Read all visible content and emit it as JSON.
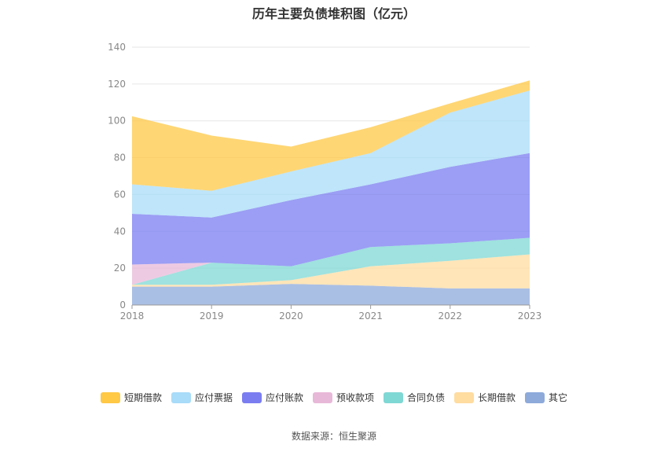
{
  "chart_data": {
    "type": "area",
    "stacked": true,
    "title": "历年主要负债堆积图（亿元）",
    "x": [
      "2018",
      "2019",
      "2020",
      "2021",
      "2022",
      "2023"
    ],
    "ylim": [
      0,
      140
    ],
    "yticks": [
      0,
      20,
      40,
      60,
      80,
      100,
      120,
      140
    ],
    "grid": true,
    "legend_position": "bottom",
    "series": [
      {
        "name": "其它",
        "color": "#8eaadb",
        "values": [
          10,
          10,
          11.5,
          10.5,
          9,
          9
        ]
      },
      {
        "name": "长期借款",
        "color": "#ffdca0",
        "values": [
          1,
          1,
          2,
          10.5,
          15,
          18.5
        ]
      },
      {
        "name": "合同负债",
        "color": "#7fd8d4",
        "values": [
          0,
          12,
          7.5,
          10.5,
          9.5,
          9
        ]
      },
      {
        "name": "预收款项",
        "color": "#e8b8d8",
        "values": [
          11,
          0,
          0,
          0,
          0,
          0
        ]
      },
      {
        "name": "应付账款",
        "color": "#7a7df0",
        "values": [
          27.5,
          24.5,
          36,
          34,
          41.5,
          46
        ]
      },
      {
        "name": "应付票据",
        "color": "#a8dcf8",
        "values": [
          16,
          14.5,
          15.5,
          17,
          29.5,
          34
        ]
      },
      {
        "name": "短期借款",
        "color": "#ffc845",
        "values": [
          37,
          30,
          13.5,
          14,
          5,
          5.5
        ]
      }
    ],
    "legend_order": [
      "短期借款",
      "应付票据",
      "应付账款",
      "预收款项",
      "合同负债",
      "长期借款",
      "其它"
    ]
  },
  "source": "数据来源：恒生聚源"
}
